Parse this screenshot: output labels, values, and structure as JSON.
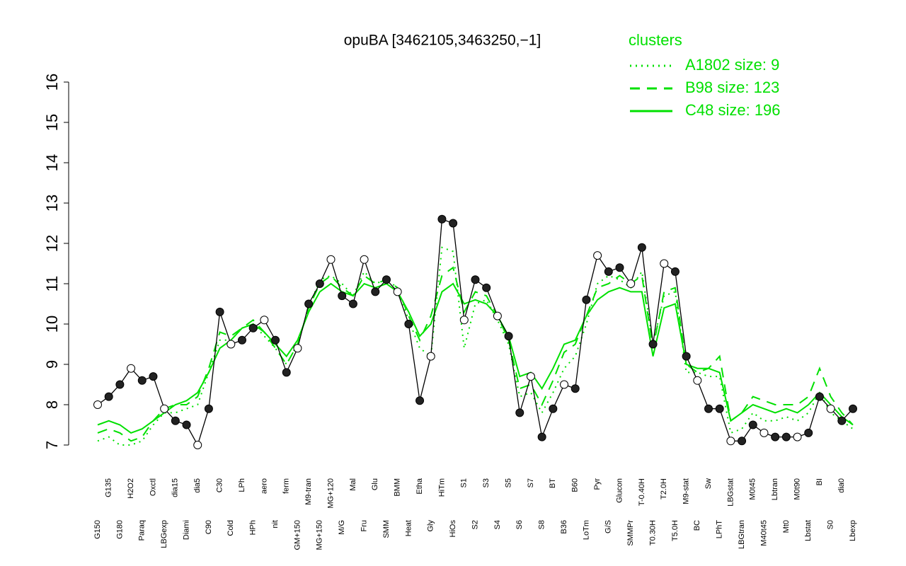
{
  "chart_data": {
    "type": "line",
    "title": "opuBA [3462105,3463250,−1]",
    "legend_title": "clusters",
    "legend_position": "top-right",
    "ylim": [
      7,
      16
    ],
    "yticks": [
      7,
      8,
      9,
      10,
      11,
      12,
      13,
      14,
      15,
      16
    ],
    "categories": [
      "G150",
      "G135",
      "G180",
      "H2O2",
      "Paraq",
      "Oxctl",
      "LBGexp",
      "dia15",
      "Diami",
      "dia5",
      "C90",
      "C30",
      "Cold",
      "LPh",
      "HPh",
      "aero",
      "nit",
      "ferm",
      "GM+150",
      "M9-tran",
      "MG+150",
      "MG+120",
      "M/G",
      "Mal",
      "Fru",
      "Glu",
      "SMM",
      "BMM",
      "Heat",
      "Etha",
      "Gly",
      "HiTm",
      "HiOs",
      "S1",
      "S2",
      "S3",
      "S4",
      "S5",
      "S6",
      "S7",
      "S8",
      "BT",
      "B36",
      "B60",
      "LoTm",
      "Pyr",
      "G/S",
      "Glucon",
      "SMMPr",
      "T-0.40H",
      "T0.30H",
      "T2.0H",
      "T5.0H",
      "M9-stat",
      "BC",
      "Sw",
      "LPhT",
      "LBGstat",
      "LBGtran",
      "M0t45",
      "M40t45",
      "Lbtran",
      "Mt0",
      "M0t90",
      "Lbstat",
      "BI",
      "S0",
      "dia0",
      "Lbexp"
    ],
    "values": [
      8.0,
      8.2,
      8.5,
      8.9,
      8.6,
      8.7,
      7.9,
      7.6,
      7.5,
      7.0,
      7.9,
      10.3,
      9.5,
      9.6,
      9.9,
      10.1,
      9.6,
      8.8,
      9.4,
      10.5,
      11.0,
      11.6,
      10.7,
      10.5,
      11.6,
      10.8,
      11.1,
      10.8,
      10.0,
      8.1,
      9.2,
      12.6,
      12.5,
      10.1,
      11.1,
      10.9,
      10.2,
      9.7,
      7.8,
      8.7,
      7.2,
      7.9,
      8.5,
      8.4,
      10.6,
      11.7,
      11.3,
      11.4,
      11.0,
      11.9,
      9.5,
      11.5,
      11.3,
      9.2,
      8.6,
      7.9,
      7.9,
      7.1,
      7.1,
      7.5,
      7.3,
      7.2,
      7.2,
      7.2,
      7.3,
      8.2,
      7.9,
      7.6,
      7.9
    ],
    "color": "#000000",
    "series": [
      {
        "name": "A1802 size: 9",
        "color": "#00e000",
        "dash": "dotted",
        "values": [
          7.1,
          7.2,
          7.0,
          7.0,
          7.1,
          7.5,
          7.8,
          7.8,
          7.9,
          8.0,
          8.8,
          9.6,
          9.6,
          9.9,
          10.0,
          9.7,
          9.4,
          9.0,
          9.5,
          10.4,
          11.1,
          11.2,
          11.0,
          10.7,
          11.3,
          11.0,
          11.1,
          10.9,
          10.1,
          9.4,
          9.2,
          11.9,
          11.8,
          9.4,
          10.5,
          10.6,
          10.1,
          9.5,
          8.2,
          8.3,
          7.8,
          8.3,
          8.9,
          9.2,
          10.0,
          11.0,
          11.2,
          11.1,
          10.9,
          11.3,
          9.5,
          10.7,
          10.8,
          8.8,
          8.8,
          8.7,
          8.7,
          7.3,
          7.4,
          7.8,
          7.6,
          7.6,
          7.7,
          7.6,
          7.8,
          8.3,
          7.8,
          7.6,
          7.4
        ]
      },
      {
        "name": "B98 size: 123",
        "color": "#00e000",
        "dash": "dashed",
        "values": [
          7.3,
          7.4,
          7.3,
          7.1,
          7.2,
          7.6,
          7.9,
          8.0,
          8.0,
          8.2,
          8.9,
          9.8,
          9.7,
          9.9,
          10.1,
          9.8,
          9.4,
          9.0,
          9.5,
          10.4,
          11.0,
          11.2,
          10.9,
          10.7,
          11.2,
          11.0,
          11.1,
          10.9,
          10.2,
          9.6,
          10.2,
          11.2,
          11.4,
          10.3,
          10.8,
          10.7,
          10.2,
          9.6,
          8.4,
          8.5,
          8.0,
          8.6,
          9.3,
          9.5,
          10.2,
          10.9,
          11.0,
          11.2,
          11.0,
          11.2,
          9.4,
          10.8,
          10.9,
          9.0,
          8.8,
          8.9,
          9.2,
          7.6,
          7.8,
          8.2,
          8.1,
          8.0,
          8.0,
          8.0,
          8.2,
          8.9,
          8.2,
          7.8,
          7.5
        ]
      },
      {
        "name": "C48 size: 196",
        "color": "#00e000",
        "dash": "solid",
        "values": [
          7.5,
          7.6,
          7.5,
          7.3,
          7.4,
          7.6,
          7.8,
          8.0,
          8.1,
          8.3,
          8.8,
          9.4,
          9.6,
          9.9,
          10.0,
          9.8,
          9.5,
          9.2,
          9.6,
          10.3,
          10.8,
          11.0,
          10.8,
          10.7,
          11.0,
          10.9,
          11.0,
          10.8,
          10.3,
          9.7,
          10.0,
          10.8,
          11.0,
          10.5,
          10.6,
          10.5,
          10.2,
          9.7,
          8.7,
          8.8,
          8.4,
          8.9,
          9.5,
          9.6,
          10.2,
          10.6,
          10.8,
          10.9,
          10.8,
          10.8,
          9.2,
          10.4,
          10.5,
          9.0,
          8.9,
          8.9,
          8.8,
          7.6,
          7.8,
          8.0,
          7.9,
          7.8,
          7.9,
          7.8,
          8.0,
          8.3,
          8.0,
          7.7,
          7.5
        ]
      }
    ]
  }
}
